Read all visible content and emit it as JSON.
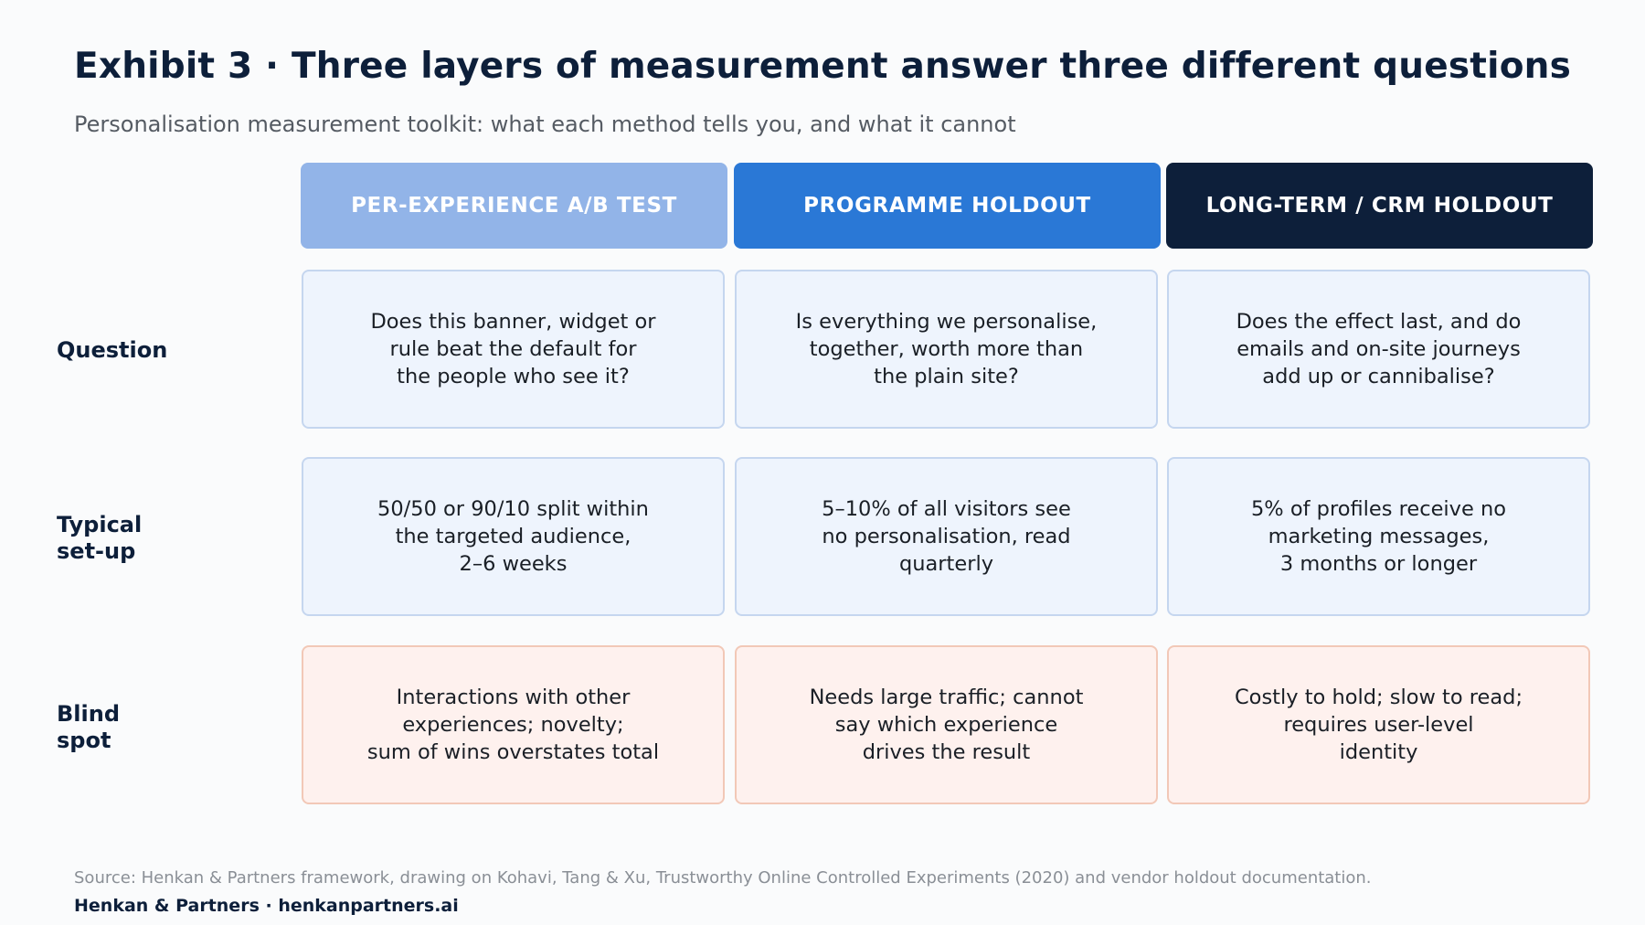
{
  "title": "Exhibit 3 · Three layers of measurement answer three different questions",
  "subtitle": "Personalisation measurement toolkit: what each method tells you, and what it cannot",
  "columns": [
    {
      "label": "PER-EXPERIENCE A/B TEST",
      "color": "#92b4e8"
    },
    {
      "label": "PROGRAMME HOLDOUT",
      "color": "#2a78d6"
    },
    {
      "label": "LONG-TERM / CRM HOLDOUT",
      "color": "#0d1f3a"
    }
  ],
  "rows": [
    {
      "label": "Question",
      "cells": [
        "Does this banner, widget or\nrule beat the default for\nthe people who see it?",
        "Is everything we personalise,\ntogether, worth more than\nthe plain site?",
        "Does the effect last, and do\nemails and on-site journeys\nadd up or cannibalise?"
      ]
    },
    {
      "label": "Typical\nset-up",
      "cells": [
        "50/50 or 90/10 split within\nthe targeted audience,\n2–6 weeks",
        "5–10% of all visitors see\nno personalisation, read\nquarterly",
        "5% of profiles receive no\nmarketing messages,\n3 months or longer"
      ]
    },
    {
      "label": "Blind\nspot",
      "cells": [
        "Interactions with other\nexperiences; novelty;\nsum of wins overstates total",
        "Needs large traffic; cannot\nsay which experience\ndrives the result",
        "Costly to hold; slow to read;\nrequires user-level\nidentity"
      ]
    }
  ],
  "source": "Source: Henkan & Partners framework, drawing on Kohavi, Tang & Xu, Trustworthy Online Controlled Experiments (2020) and vendor holdout documentation.",
  "footer": "Henkan & Partners · henkanpartners.ai"
}
